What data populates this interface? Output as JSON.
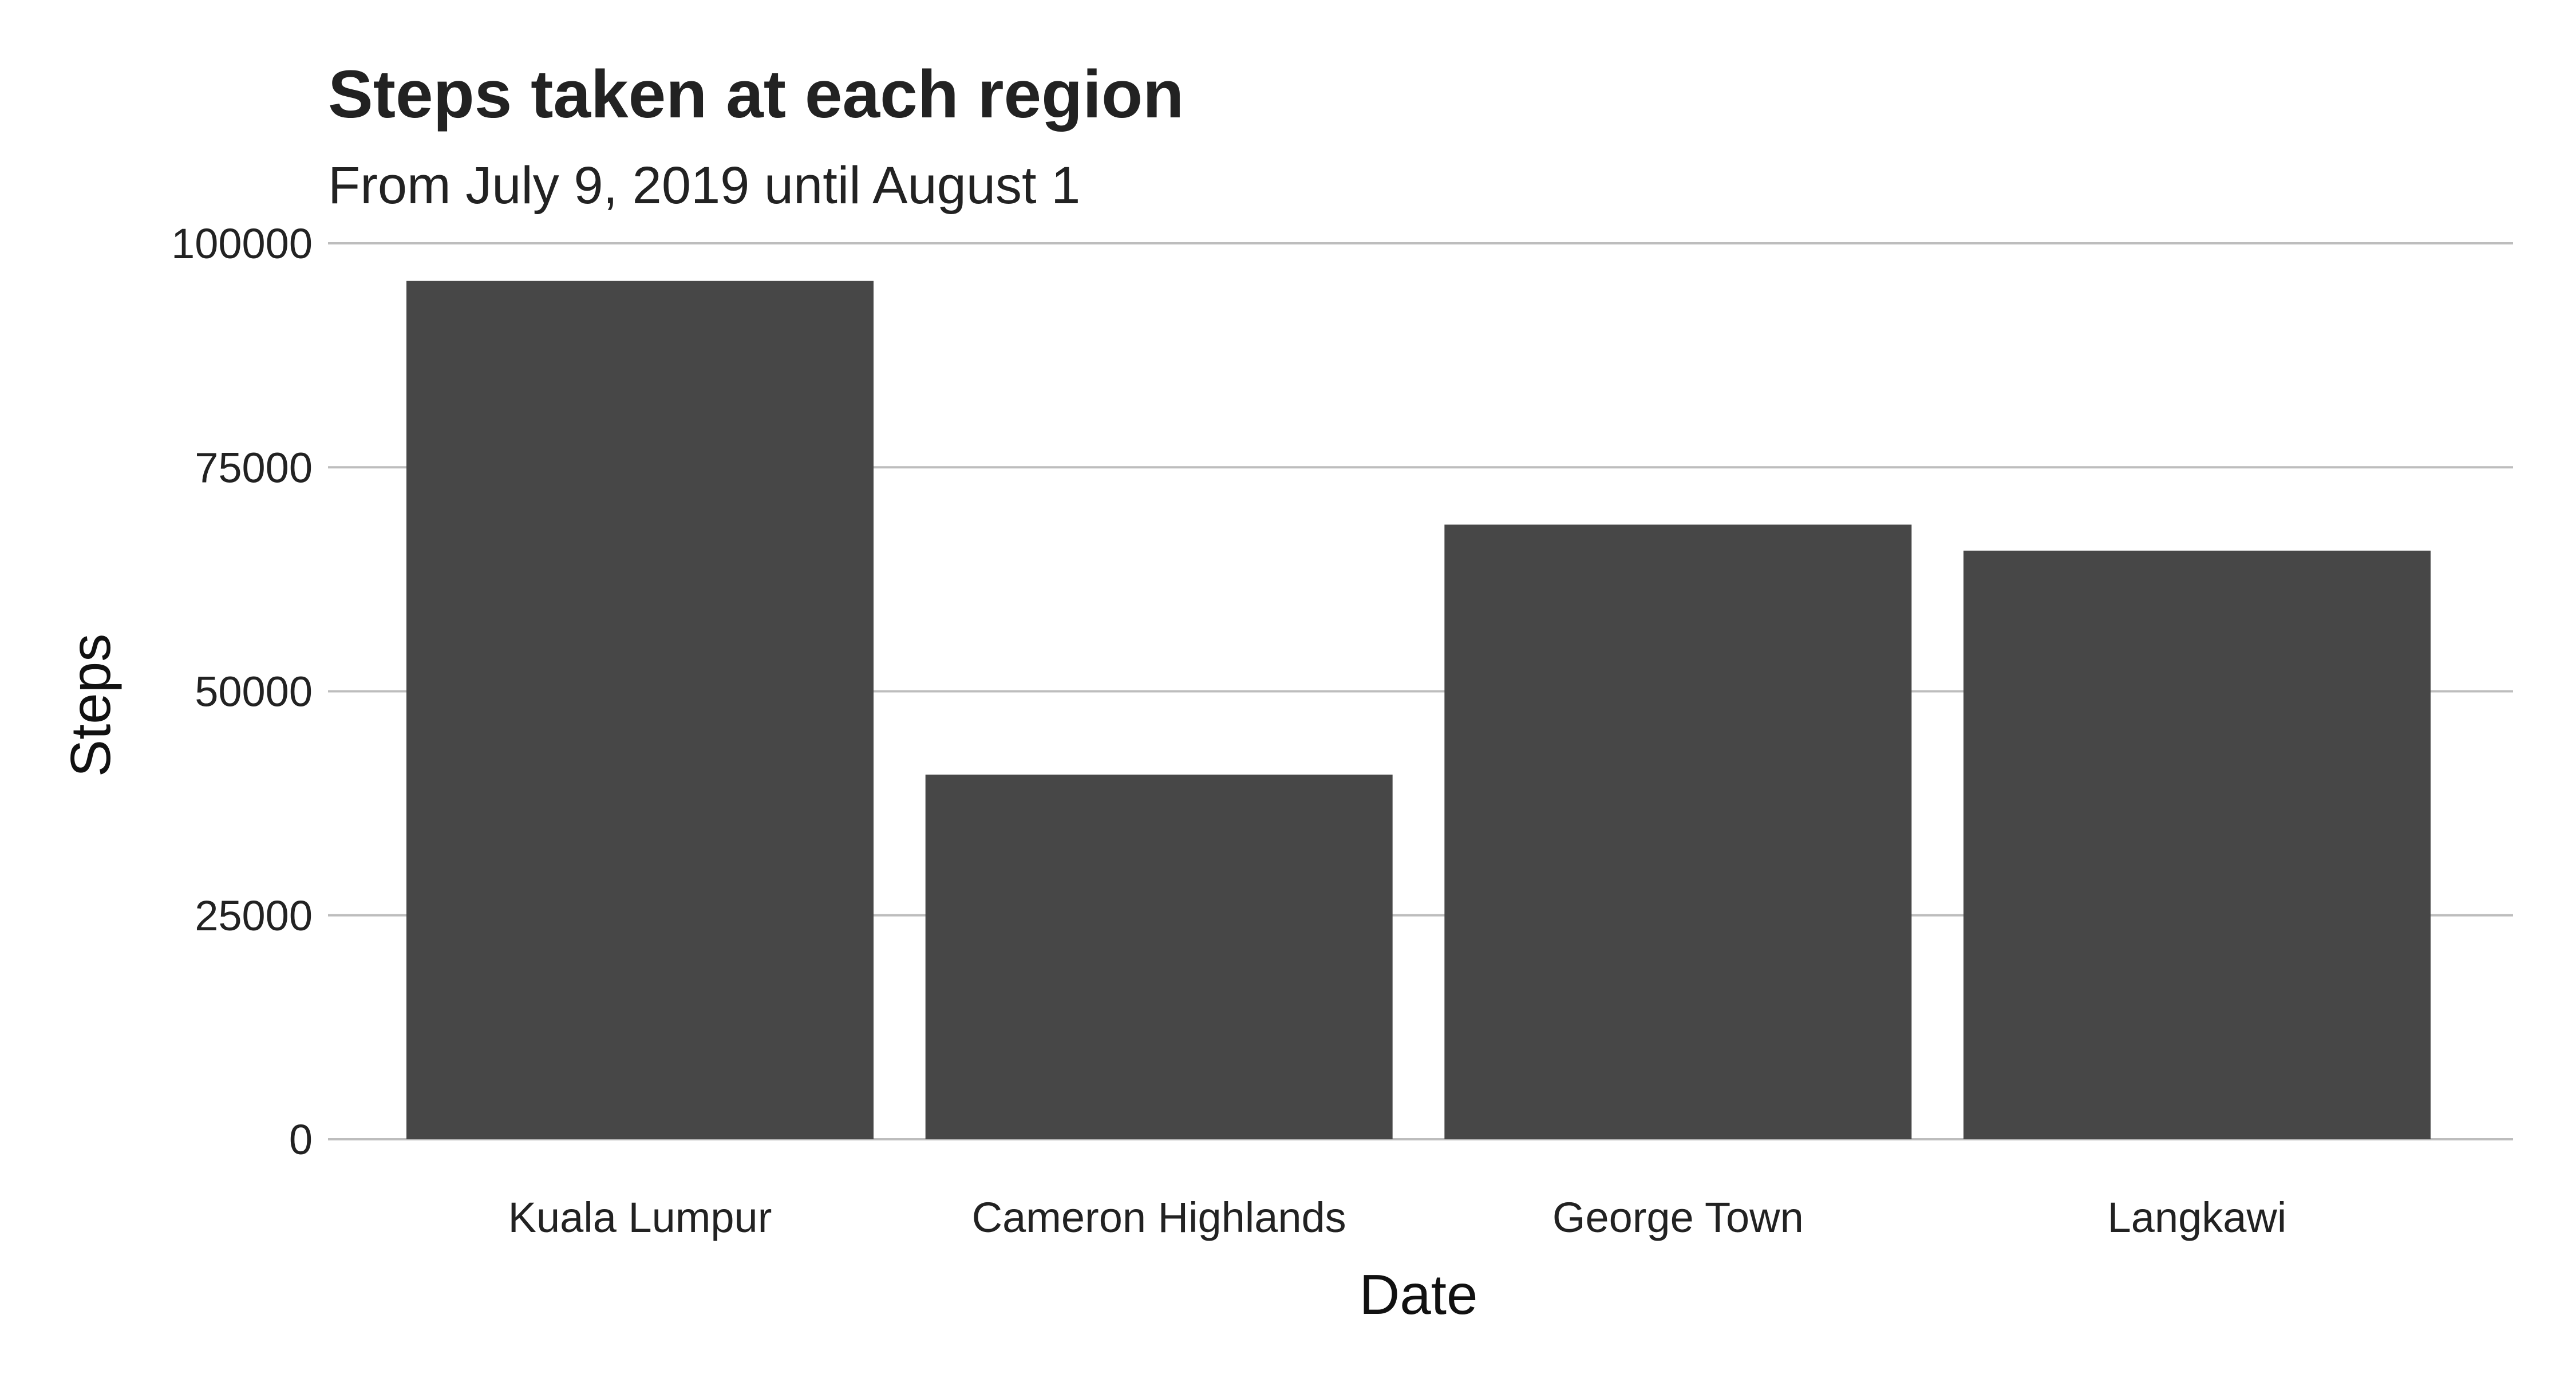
{
  "chart_data": {
    "type": "bar",
    "title": "Steps taken at each region",
    "subtitle": "From July 9, 2019 until August 1",
    "xlabel": "Date",
    "ylabel": "Steps",
    "categories": [
      "Kuala Lumpur",
      "Cameron Highlands",
      "George Town",
      "Langkawi"
    ],
    "values": [
      95800,
      40700,
      68600,
      65700
    ],
    "ylim": [
      0,
      100000
    ],
    "yticks": [
      "0",
      "25000",
      "50000",
      "75000",
      "100000"
    ],
    "grid": true,
    "legend": "none",
    "bar_color": "#474747",
    "grid_color": "#bdbdbd"
  }
}
